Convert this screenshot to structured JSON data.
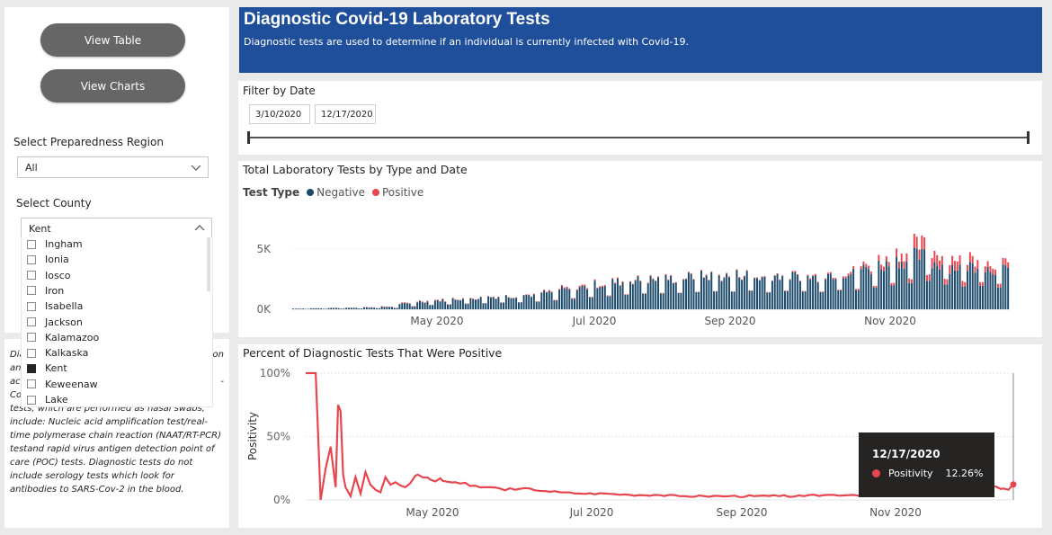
{
  "nav": {
    "view_table_label": "View Table",
    "view_charts_label": "View Charts"
  },
  "region_slicer": {
    "title": "Select Preparedness Region",
    "selected": "All"
  },
  "county_slicer": {
    "title": "Select County",
    "selected": "Kent",
    "items": [
      {
        "label": "Ingham",
        "checked": false
      },
      {
        "label": "Ionia",
        "checked": false
      },
      {
        "label": "Iosco",
        "checked": false
      },
      {
        "label": "Iron",
        "checked": false
      },
      {
        "label": "Isabella",
        "checked": false
      },
      {
        "label": "Jackson",
        "checked": false
      },
      {
        "label": "Kalamazoo",
        "checked": false
      },
      {
        "label": "Kalkaska",
        "checked": false
      },
      {
        "label": "Kent",
        "checked": true
      },
      {
        "label": "Keweenaw",
        "checked": false
      },
      {
        "label": "Lake",
        "checked": false
      }
    ]
  },
  "note": {
    "prefix": "Dia",
    "suffix_line1": "on",
    "line2_prefix": "an",
    "line3_prefix": "ac",
    "line3_suffix": "-",
    "line4_prefix": "Co",
    "rest": "tests, which are performed as nasal swabs, include: Nucleic acid amplification test/real-time polymerase chain reaction (NAAT/RT-PCR) testand rapid virus antigen detection point of care (POC) tests.  Diagnostic tests do not include serology tests which look for antibodies to SARS-Cov-2 in the blood."
  },
  "header": {
    "title": "Diagnostic Covid-19 Laboratory Tests",
    "subtitle": "Diagnostic tests are used to determine if an individual is currently infected with Covid-19."
  },
  "date_filter": {
    "label": "Filter by Date",
    "start": "3/10/2020",
    "end": "12/17/2020"
  },
  "colors": {
    "negative": "#1b4a6b",
    "positive": "#e8464e",
    "header_bg": "#1f4e9a"
  },
  "chart_data": [
    {
      "type": "bar",
      "title": "Total Laboratory Tests by Type and Date",
      "legend_title": "Test Type",
      "legend_placement": "top-left",
      "xlabel": "",
      "ylabel": "",
      "x_ticks": [
        "May 2020",
        "Jul 2020",
        "Sep 2020",
        "Nov 2020"
      ],
      "y_ticks": [
        "0K",
        "5K"
      ],
      "ylim": [
        0,
        5800
      ],
      "stacked": true,
      "series": [
        {
          "name": "Negative",
          "weekly_avg_values": [
            60,
            80,
            110,
            130,
            160,
            200,
            450,
            620,
            720,
            840,
            900,
            1000,
            1050,
            1150,
            1350,
            1600,
            1800,
            2000,
            2200,
            2350,
            2400,
            2450,
            2600,
            2700,
            2650,
            2800,
            2550,
            2750,
            2700,
            2600,
            2850,
            2900,
            3300,
            3600,
            3950,
            4300,
            3750,
            3450,
            3550,
            3300,
            3150,
            3050
          ]
        },
        {
          "name": "Positive",
          "weekly_avg_values": [
            5,
            8,
            10,
            12,
            18,
            25,
            40,
            55,
            50,
            45,
            40,
            35,
            30,
            40,
            60,
            90,
            110,
            95,
            80,
            75,
            70,
            60,
            55,
            50,
            55,
            60,
            55,
            60,
            70,
            90,
            120,
            180,
            250,
            400,
            650,
            900,
            850,
            750,
            650,
            520,
            480,
            430
          ]
        }
      ]
    },
    {
      "type": "line",
      "title": "Percent of Diagnostic Tests That Were Positive",
      "xlabel": "",
      "ylabel": "Positivity",
      "x_ticks": [
        "May 2020",
        "Jul 2020",
        "Sep 2020",
        "Nov 2020"
      ],
      "y_ticks": [
        "0%",
        "50%",
        "100%"
      ],
      "ylim": [
        0,
        100
      ],
      "series": [
        {
          "name": "Positivity",
          "x_start": "3/10/2020",
          "x_end": "12/17/2020",
          "points": [
            [
              0,
              100
            ],
            [
              2,
              100
            ],
            [
              4,
              100
            ],
            [
              5,
              50
            ],
            [
              6,
              0
            ],
            [
              8,
              25
            ],
            [
              10,
              42
            ],
            [
              12,
              10
            ],
            [
              13,
              75
            ],
            [
              14,
              70
            ],
            [
              15,
              20
            ],
            [
              16,
              10
            ],
            [
              18,
              3
            ],
            [
              20,
              18
            ],
            [
              22,
              5
            ],
            [
              24,
              22
            ],
            [
              26,
              12
            ],
            [
              28,
              8
            ],
            [
              30,
              6
            ],
            [
              32,
              18
            ],
            [
              34,
              12
            ],
            [
              36,
              14
            ],
            [
              40,
              10
            ],
            [
              45,
              20
            ],
            [
              50,
              16
            ],
            [
              55,
              15
            ],
            [
              60,
              14
            ],
            [
              66,
              11
            ],
            [
              72,
              10
            ],
            [
              78,
              9
            ],
            [
              84,
              8
            ],
            [
              90,
              9
            ],
            [
              96,
              7
            ],
            [
              102,
              6
            ],
            [
              110,
              5
            ],
            [
              120,
              5
            ],
            [
              130,
              4
            ],
            [
              140,
              4
            ],
            [
              150,
              3
            ],
            [
              160,
              3
            ],
            [
              170,
              3
            ],
            [
              180,
              3
            ],
            [
              190,
              3
            ],
            [
              200,
              3
            ],
            [
              210,
              4
            ],
            [
              220,
              4
            ],
            [
              230,
              4
            ],
            [
              240,
              5
            ],
            [
              250,
              6
            ],
            [
              260,
              8
            ],
            [
              270,
              10
            ],
            [
              275,
              11
            ],
            [
              280,
              9
            ],
            [
              282,
              8
            ],
            [
              284,
              12.26
            ]
          ]
        }
      ]
    }
  ],
  "tooltip": {
    "date": "12/17/2020",
    "series": "Positivity",
    "value": "12.26%"
  }
}
